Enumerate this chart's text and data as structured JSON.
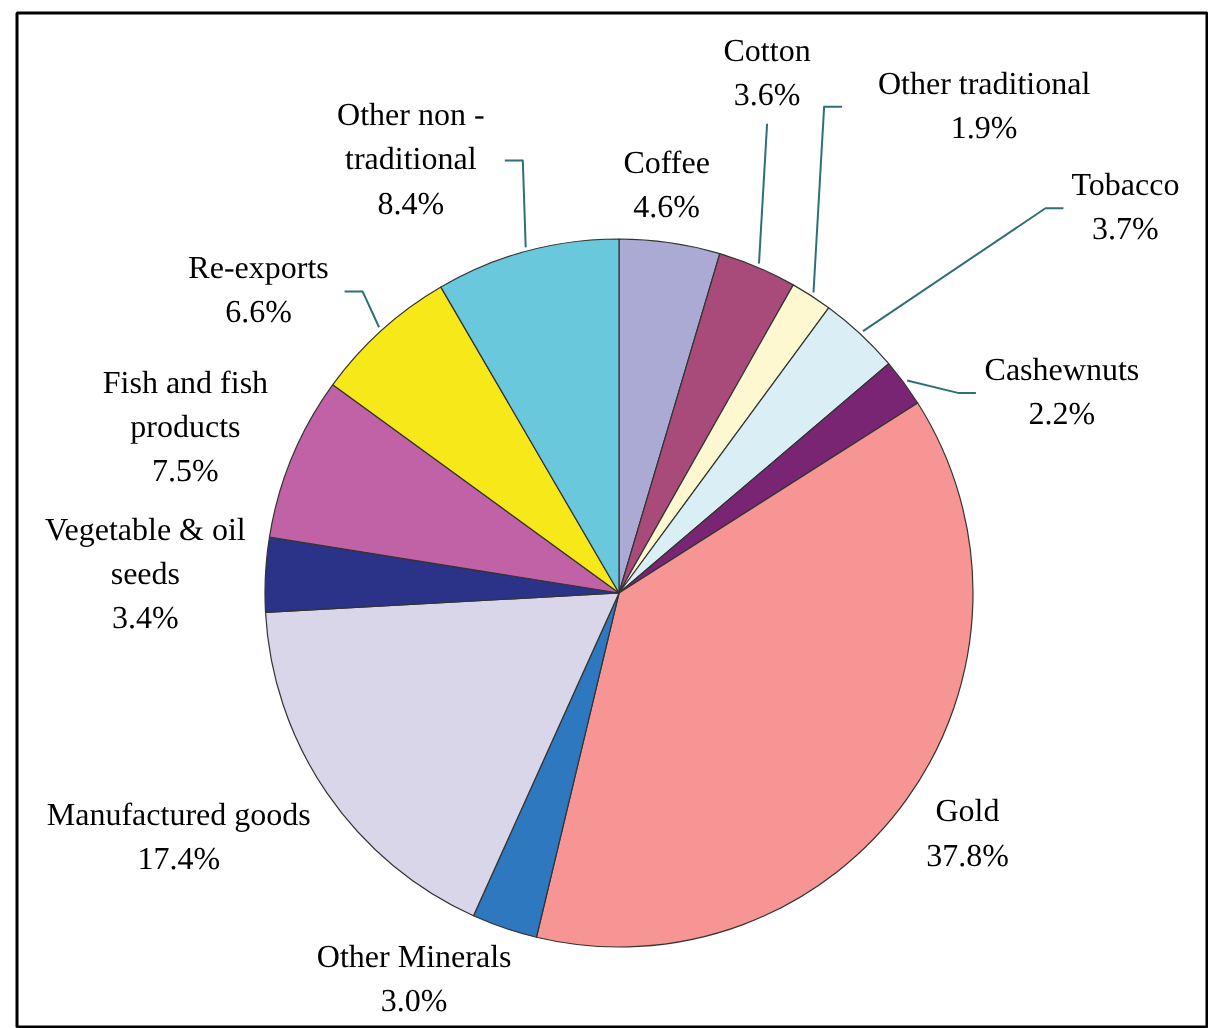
{
  "chart_data": {
    "type": "pie",
    "categories": [
      "Coffee",
      "Cotton",
      "Other traditional",
      "Tobacco",
      "Cashewnuts",
      "Gold",
      "Other Minerals",
      "Manufactured goods",
      "Vegetable & oil seeds",
      "Fish and fish products",
      "Re-exports",
      "Other non - traditional"
    ],
    "values": [
      4.6,
      3.6,
      1.9,
      3.7,
      2.2,
      37.8,
      3.0,
      17.4,
      3.4,
      7.5,
      6.6,
      8.4
    ],
    "colors": [
      "#aaaad4",
      "#a84a7a",
      "#fdf8d0",
      "#d9eef5",
      "#7a2573",
      "#f69593",
      "#2e78bf",
      "#d9d6ea",
      "#2b3388",
      "#c162a6",
      "#f6e819",
      "#6ac8dc"
    ],
    "value_labels": [
      "4.6%",
      "3.6%",
      "1.9%",
      "3.7%",
      "2.2%",
      "37.8%",
      "3.0%",
      "17.4%",
      "3.4%",
      "7.5%",
      "6.6%",
      "8.4%"
    ]
  }
}
